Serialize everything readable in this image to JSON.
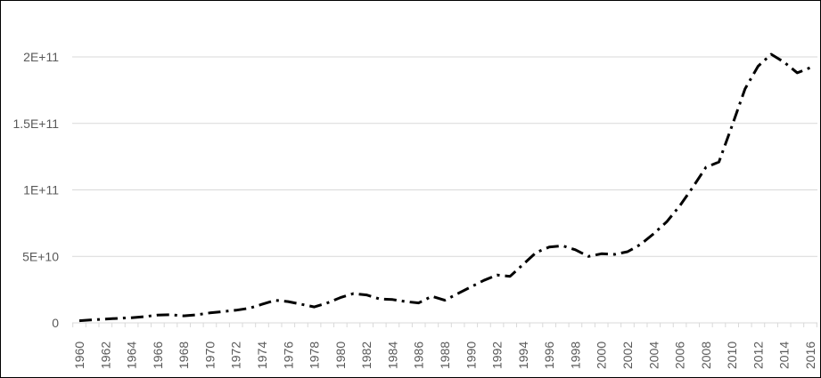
{
  "chart_data": {
    "type": "line",
    "title": "",
    "xlabel": "",
    "ylabel": "",
    "ylim": [
      0,
      200000000000
    ],
    "grid": true,
    "legend": "none",
    "line_color": "#000000",
    "line_style": "dash-dot",
    "gridline_color": "#d9d9d9",
    "y_ticks": [
      {
        "value": 0,
        "label": "0"
      },
      {
        "value": 50000000000,
        "label": "5E+10"
      },
      {
        "value": 100000000000,
        "label": "1E+11"
      },
      {
        "value": 150000000000,
        "label": "1.5E+11"
      },
      {
        "value": 200000000000,
        "label": "2E+11"
      }
    ],
    "x_tick_labels": [
      "1960",
      "1962",
      "1964",
      "1966",
      "1968",
      "1970",
      "1972",
      "1974",
      "1976",
      "1978",
      "1980",
      "1982",
      "1984",
      "1986",
      "1988",
      "1990",
      "1992",
      "1994",
      "1996",
      "1998",
      "2000",
      "2002",
      "2004",
      "2006",
      "2008",
      "2010",
      "2012",
      "2014",
      "2016"
    ],
    "x": [
      1960,
      1961,
      1962,
      1963,
      1964,
      1965,
      1966,
      1967,
      1968,
      1969,
      1970,
      1971,
      1972,
      1973,
      1974,
      1975,
      1976,
      1977,
      1978,
      1979,
      1980,
      1981,
      1982,
      1983,
      1984,
      1985,
      1986,
      1987,
      1988,
      1989,
      1990,
      1991,
      1992,
      1993,
      1994,
      1995,
      1996,
      1997,
      1998,
      1999,
      2000,
      2001,
      2002,
      2003,
      2004,
      2005,
      2006,
      2007,
      2008,
      2009,
      2010,
      2011,
      2012,
      2013,
      2014,
      2015,
      2016
    ],
    "series": [
      {
        "values": [
          1600000000,
          2300000000,
          2900000000,
          3400000000,
          3900000000,
          4700000000,
          5900000000,
          6100000000,
          5300000000,
          6100000000,
          7500000000,
          8500000000,
          9500000000,
          11000000000,
          14000000000,
          17000000000,
          16000000000,
          14000000000,
          12000000000,
          15000000000,
          19000000000,
          22000000000,
          21000000000,
          18000000000,
          17500000000,
          16000000000,
          15000000000,
          20000000000,
          17000000000,
          22000000000,
          27000000000,
          32000000000,
          36000000000,
          35000000000,
          44000000000,
          53000000000,
          57000000000,
          58000000000,
          55000000000,
          50000000000,
          52000000000,
          51500000000,
          53500000000,
          59000000000,
          67000000000,
          76000000000,
          88000000000,
          102000000000,
          117000000000,
          121000000000,
          148000000000,
          176000000000,
          193000000000,
          202000000000,
          196000000000,
          188000000000,
          192000000000
        ]
      }
    ]
  }
}
